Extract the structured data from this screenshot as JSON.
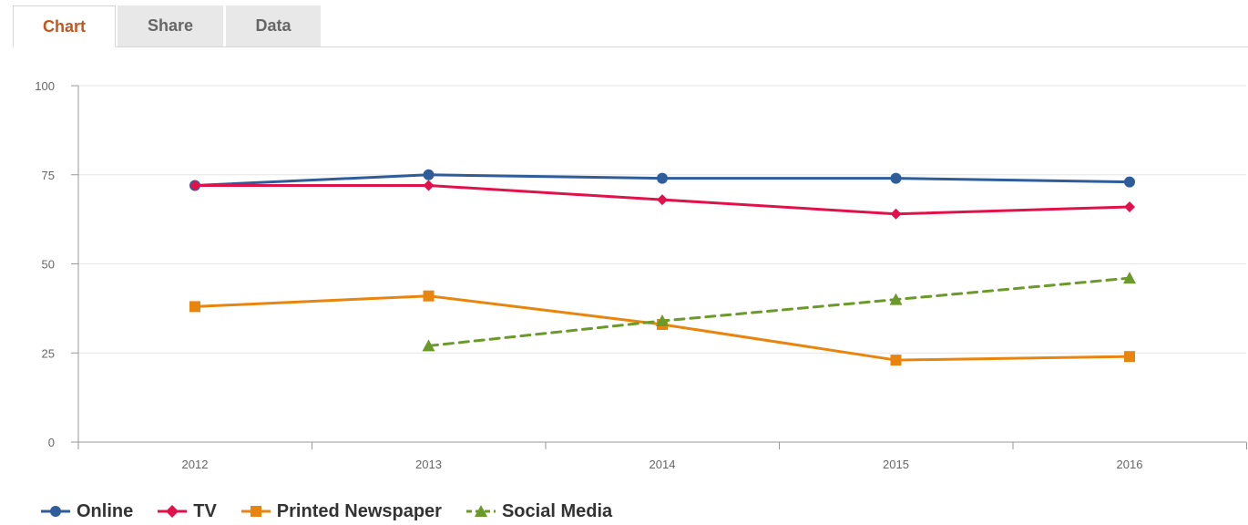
{
  "tabs": [
    {
      "label": "Chart",
      "active": true
    },
    {
      "label": "Share",
      "active": false
    },
    {
      "label": "Data",
      "active": false
    }
  ],
  "chart_data": {
    "type": "line",
    "title": "",
    "xlabel": "",
    "ylabel": "",
    "x": [
      "2012",
      "2013",
      "2014",
      "2015",
      "2016"
    ],
    "ylim": [
      0,
      100
    ],
    "yticks": [
      0,
      25,
      50,
      75,
      100
    ],
    "grid": true,
    "legend_position": "bottom-left",
    "series": [
      {
        "name": "Online",
        "color": "#2e5d9a",
        "marker": "circle",
        "dash": false,
        "values": [
          72,
          75,
          74,
          74,
          73
        ]
      },
      {
        "name": "TV",
        "color": "#e0124b",
        "marker": "diamond",
        "dash": false,
        "values": [
          72,
          72,
          68,
          64,
          66
        ]
      },
      {
        "name": "Printed Newspaper",
        "color": "#e8850e",
        "marker": "square",
        "dash": false,
        "values": [
          38,
          41,
          33,
          23,
          24
        ]
      },
      {
        "name": "Social Media",
        "color": "#6b9a2b",
        "marker": "triangle",
        "dash": true,
        "values": [
          null,
          27,
          34,
          40,
          46
        ]
      }
    ]
  }
}
